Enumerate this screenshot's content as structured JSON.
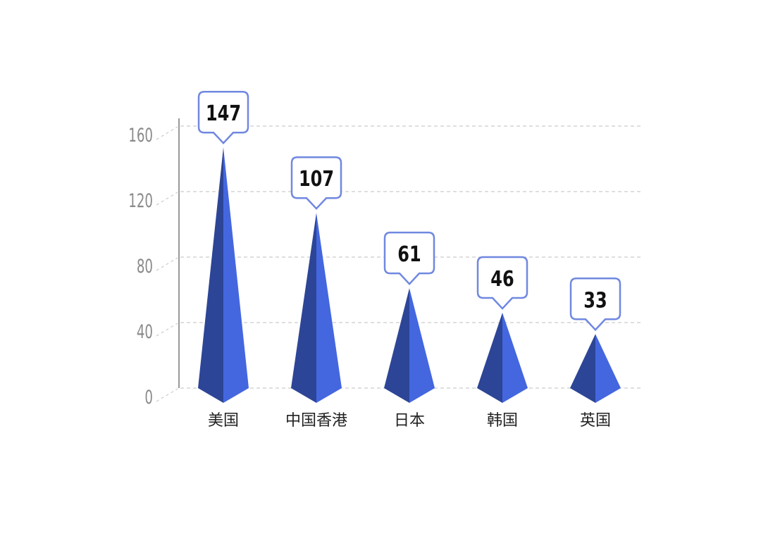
{
  "chart_data": {
    "type": "bar",
    "style": "pyramid",
    "categories": [
      "美国",
      "中国香港",
      "日本",
      "韩国",
      "英国"
    ],
    "values": [
      147,
      107,
      61,
      46,
      33
    ],
    "data_labels": [
      "147",
      "107",
      "61",
      "46",
      "33"
    ],
    "yticks": [
      "0",
      "40",
      "80",
      "120",
      "160"
    ],
    "ylim": [
      0,
      160
    ],
    "grid": true,
    "colors": {
      "left_face": "#2d4596",
      "right_face": "#4467df",
      "label_border": "#7088e0",
      "grid": "#cccccc",
      "axis": "#999999"
    }
  }
}
